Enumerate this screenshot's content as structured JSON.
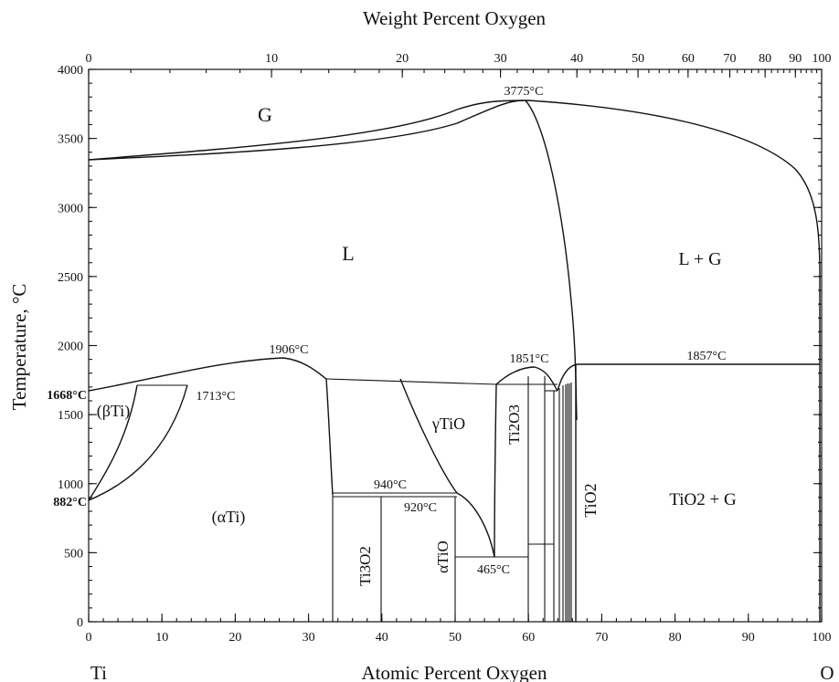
{
  "axes": {
    "top_title": "Weight Percent Oxygen",
    "bottom_title": "Atomic Percent Oxygen",
    "y_title": "Temperature, °C",
    "left_element": "Ti",
    "right_element": "O",
    "bottom_ticks": [
      "0",
      "10",
      "20",
      "30",
      "40",
      "50",
      "60",
      "70",
      "80",
      "90",
      "100"
    ],
    "left_ticks": [
      "0",
      "500",
      "1000",
      "1500",
      "2000",
      "2500",
      "3000",
      "3500",
      "4000"
    ],
    "top_ticks": [
      "0",
      "10",
      "20",
      "30",
      "40",
      "50",
      "60",
      "70",
      "80",
      "90",
      "100"
    ]
  },
  "phases": {
    "gas": "G",
    "liquid": "L",
    "liquid_gas": "L + G",
    "beta_ti": "(βTi)",
    "alpha_ti": "(αTi)",
    "gamma_tio": "γTiO",
    "alpha_tio": "αTiO",
    "ti3o2": "Ti3O2",
    "ti2o3": "Ti2O3",
    "tio2": "TiO2",
    "tio2_gas": "TiO2 + G"
  },
  "temperatures": {
    "t3775": "3775°C",
    "t1906": "1906°C",
    "t1851": "1851°C",
    "t1857": "1857°C",
    "t1713": "1713°C",
    "t1668": "1668°C",
    "t882": "882°C",
    "t940": "940°C",
    "t920": "920°C",
    "t465": "465°C"
  }
}
